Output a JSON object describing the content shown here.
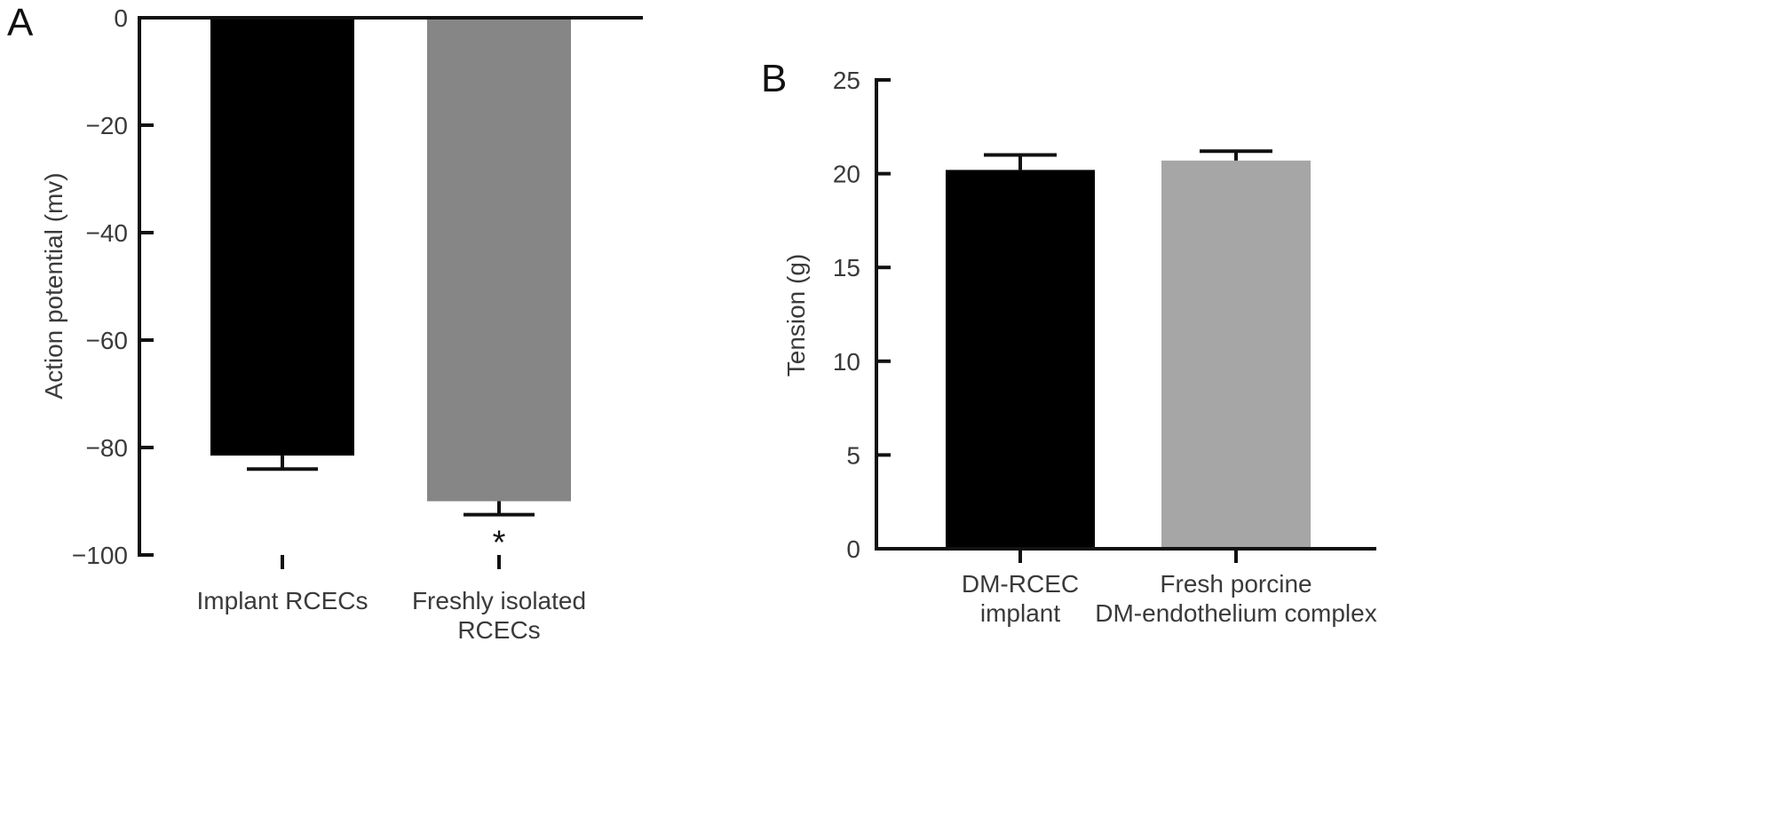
{
  "chart_data": [
    {
      "panel_label": "A",
      "type": "bar",
      "categories": [
        [
          "Implant RCECs"
        ],
        [
          "Freshly isolated",
          "RCECs"
        ]
      ],
      "values": [
        -81.5,
        -90
      ],
      "errors": [
        2.5,
        2.5
      ],
      "colors": [
        "#000000",
        "#868686"
      ],
      "ylabel": "Action potential (mv)",
      "ylim": [
        -100,
        0
      ],
      "yticks": [
        0,
        -20,
        -40,
        -60,
        -80,
        -100
      ],
      "ytick_labels": [
        "0",
        "−20",
        "−40",
        "−60",
        "−80",
        "−100"
      ],
      "annotations": [
        {
          "category_index": 1,
          "text": "*"
        }
      ],
      "grid": false,
      "legend": "none"
    },
    {
      "panel_label": "B",
      "type": "bar",
      "categories": [
        [
          "DM-RCEC",
          "implant"
        ],
        [
          "Fresh porcine",
          "DM-endothelium complex"
        ]
      ],
      "values": [
        20.2,
        20.7
      ],
      "errors": [
        0.8,
        0.5
      ],
      "colors": [
        "#000000",
        "#a6a6a6"
      ],
      "ylabel": "Tension (g)",
      "ylim": [
        0,
        25
      ],
      "yticks": [
        0,
        5,
        10,
        15,
        20,
        25
      ],
      "ytick_labels": [
        "0",
        "5",
        "10",
        "15",
        "20",
        "25"
      ],
      "annotations": [],
      "grid": false,
      "legend": "none"
    }
  ]
}
